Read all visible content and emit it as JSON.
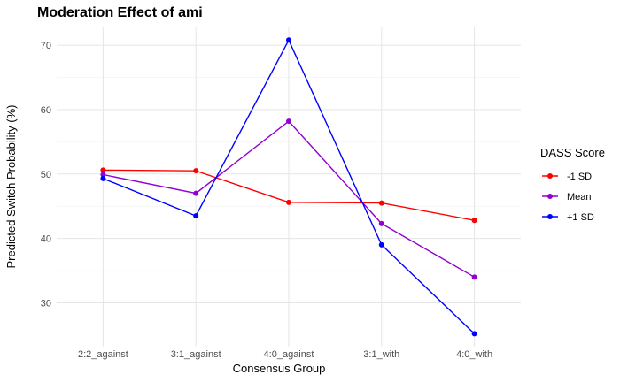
{
  "chart_data": {
    "type": "line",
    "title": "Moderation Effect of ami",
    "xlabel": "Consensus Group",
    "ylabel": "Predicted Switch Probability (%)",
    "categories": [
      "2:2_against",
      "3:1_against",
      "4:0_against",
      "3:1_with",
      "4:0_with"
    ],
    "yticks": [
      30,
      40,
      50,
      60,
      70
    ],
    "ylim": [
      23.2,
      72.9
    ],
    "grid": true,
    "legend": {
      "title": "DASS Score",
      "placement": "right"
    },
    "series": [
      {
        "name": "-1 SD",
        "color": "#ff0000",
        "values": [
          50.6,
          50.5,
          45.6,
          45.5,
          42.8
        ]
      },
      {
        "name": "Mean",
        "color": "#9400d3",
        "values": [
          49.9,
          47.0,
          58.2,
          42.3,
          34.0
        ]
      },
      {
        "name": "+1 SD",
        "color": "#0000ff",
        "values": [
          49.3,
          43.5,
          70.8,
          39.0,
          25.2
        ]
      }
    ]
  }
}
